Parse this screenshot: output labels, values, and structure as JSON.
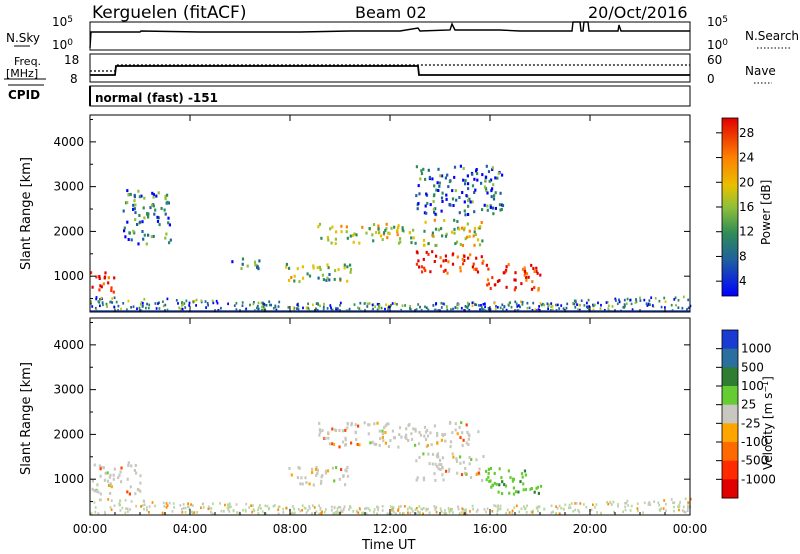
{
  "header": {
    "station": "Kerguelen (fitACF)",
    "beam": "Beam 02",
    "date": "20/Oct/2016"
  },
  "noise_panel": {
    "left_label": "N.Sky",
    "right_label": "N.Search",
    "left_ticks": [
      "10^5",
      "10^0"
    ],
    "right_ticks": [
      "10^5",
      "10^0"
    ]
  },
  "freq_panel": {
    "left_label_1": "Freq.",
    "left_label_2": "[MHz]",
    "left_ticks": [
      "18",
      "8"
    ],
    "right_label": "Nave",
    "right_ticks": [
      "60",
      "0"
    ],
    "cpid_label": "CPID",
    "cpid_value": "normal (fast) -151"
  },
  "chart_data": [
    {
      "type": "heatmap",
      "title": "",
      "quantity": "Power",
      "ylabel": "Slant Range [km]",
      "ylim": [
        200,
        4600
      ],
      "yticks": [
        "1000",
        "2000",
        "3000",
        "4000"
      ],
      "colorbar_label": "Power [dB]",
      "colorbar_ticks": [
        "4",
        "8",
        "12",
        "16",
        "20",
        "24",
        "28"
      ],
      "colorbar_colors": [
        "#0000ff",
        "#1a53a6",
        "#2e8b57",
        "#7fbf3f",
        "#e0c000",
        "#ff8c00",
        "#ff4500",
        "#e00000"
      ],
      "features": [
        {
          "t0": 0.0,
          "t1": 1.0,
          "r0": 650,
          "r1": 1150,
          "level": 0.85
        },
        {
          "t0": 1.3,
          "t1": 3.2,
          "r0": 1750,
          "r1": 2950,
          "level": 0.25
        },
        {
          "t0": 5.5,
          "t1": 6.8,
          "r0": 1200,
          "r1": 1450,
          "level": 0.3
        },
        {
          "t0": 7.8,
          "t1": 10.5,
          "r0": 900,
          "r1": 1300,
          "level": 0.45
        },
        {
          "t0": 9.0,
          "t1": 13.0,
          "r0": 1750,
          "r1": 2200,
          "level": 0.5
        },
        {
          "t0": 13.0,
          "t1": 15.7,
          "r0": 1100,
          "r1": 1600,
          "level": 0.85
        },
        {
          "t0": 13.3,
          "t1": 15.7,
          "r0": 1700,
          "r1": 2300,
          "level": 0.5
        },
        {
          "t0": 15.8,
          "t1": 18.0,
          "r0": 700,
          "r1": 1300,
          "level": 0.85
        },
        {
          "t0": 13.0,
          "t1": 16.5,
          "r0": 2400,
          "r1": 3500,
          "level": 0.2
        }
      ]
    },
    {
      "type": "heatmap",
      "title": "",
      "quantity": "Velocity",
      "ylabel": "Slant Range [km]",
      "ylim": [
        200,
        4600
      ],
      "yticks": [
        "1000",
        "2000",
        "3000",
        "4000"
      ],
      "xlabel": "Time UT",
      "xticks": [
        "00:00",
        "04:00",
        "08:00",
        "12:00",
        "16:00",
        "20:00",
        "00:00"
      ],
      "colorbar_label": "Velocity [m s^-1]",
      "colorbar_ticks": [
        "1000",
        "500",
        "100",
        "25",
        "-25",
        "-100",
        "-500",
        "-1000"
      ],
      "colorbar_colors": [
        "#1a3bd1",
        "#2a6f9e",
        "#2e7d32",
        "#66cc33",
        "#c8c8c0",
        "#ffa500",
        "#ff6a00",
        "#ff2a00",
        "#e00000"
      ],
      "features": [
        {
          "t0": 0.0,
          "t1": 2.0,
          "r0": 700,
          "r1": 1400,
          "level": "-25..25"
        },
        {
          "t0": 7.8,
          "t1": 10.5,
          "r0": 900,
          "r1": 1300,
          "level": "-25..25"
        },
        {
          "t0": 9.0,
          "t1": 15.5,
          "r0": 1750,
          "r1": 2300,
          "level": "-25..25"
        },
        {
          "t0": 13.0,
          "t1": 15.7,
          "r0": 1000,
          "r1": 1600,
          "level": "-25..25"
        },
        {
          "t0": 15.8,
          "t1": 18.0,
          "r0": 700,
          "r1": 1300,
          "level": "100..500"
        }
      ]
    }
  ]
}
